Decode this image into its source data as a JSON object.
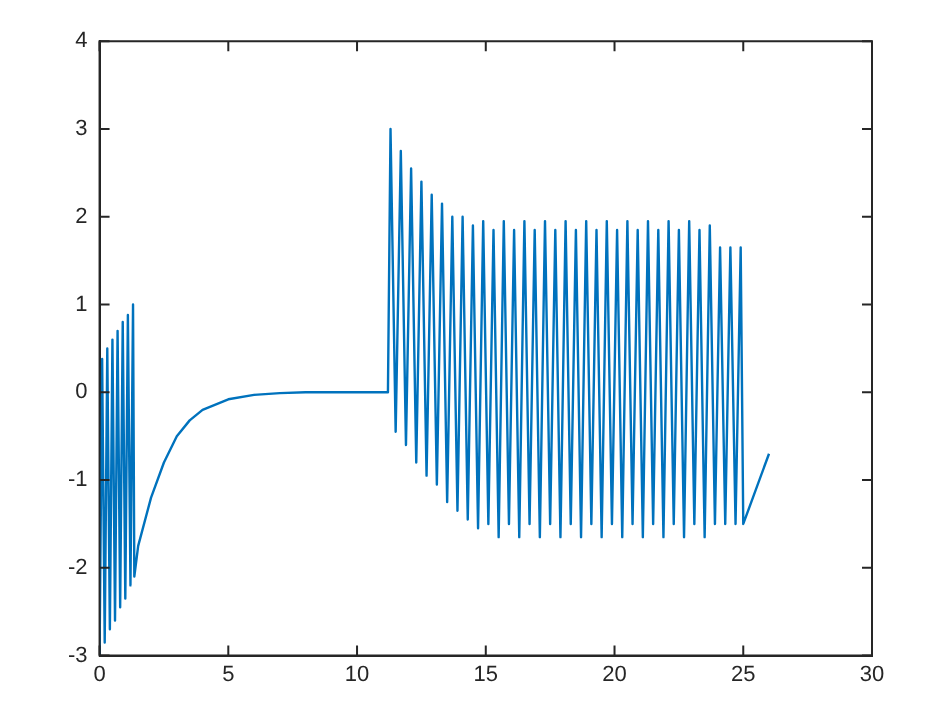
{
  "chart_data": {
    "type": "line",
    "marker": "none",
    "line_style": "solid",
    "grid": false,
    "legend": false,
    "xlim": [
      0,
      30
    ],
    "xticks": [
      0,
      5,
      10,
      15,
      20,
      25,
      30
    ],
    "ylim": [
      -3,
      4
    ],
    "yticks": [
      -3,
      -2,
      -1,
      0,
      1,
      2,
      3,
      4
    ],
    "series": [
      {
        "color": "#0072bd",
        "x": [
          0,
          0.1,
          0.2,
          0.3,
          0.4,
          0.5,
          0.6,
          0.7,
          0.8,
          0.9,
          1.0,
          1.1,
          1.2,
          1.3,
          1.35,
          1.5,
          2,
          2.5,
          3,
          3.5,
          4,
          5,
          6,
          7,
          8,
          11.2,
          11.3,
          11.5,
          11.7,
          11.9,
          12.1,
          12.3,
          12.5,
          12.7,
          12.9,
          13.1,
          13.3,
          13.5,
          13.7,
          13.9,
          14.1,
          14.3,
          14.5,
          14.7,
          14.9,
          15.1,
          15.3,
          15.5,
          15.7,
          15.9,
          16.1,
          16.3,
          16.5,
          16.7,
          16.9,
          17.1,
          17.3,
          17.5,
          17.7,
          17.9,
          18.1,
          18.3,
          18.5,
          18.7,
          18.9,
          19.1,
          19.3,
          19.5,
          19.7,
          19.9,
          20.1,
          20.3,
          20.5,
          20.7,
          20.9,
          21.1,
          21.3,
          21.5,
          21.7,
          21.9,
          22.1,
          22.3,
          22.5,
          22.7,
          22.9,
          23.1,
          23.3,
          23.5,
          23.7,
          23.9,
          24.1,
          24.3,
          24.5,
          24.7,
          24.9,
          25.0,
          26
        ],
        "values": [
          -3.0,
          0.38,
          -2.85,
          0.5,
          -2.7,
          0.6,
          -2.6,
          0.7,
          -2.45,
          0.8,
          -2.35,
          0.88,
          -2.2,
          1.0,
          -2.1,
          -1.75,
          -1.2,
          -0.8,
          -0.5,
          -0.32,
          -0.2,
          -0.08,
          -0.03,
          -0.01,
          0,
          0,
          3.0,
          -0.45,
          2.75,
          -0.6,
          2.55,
          -0.8,
          2.4,
          -0.95,
          2.25,
          -1.05,
          2.15,
          -1.25,
          2.0,
          -1.35,
          2.0,
          -1.45,
          1.9,
          -1.55,
          1.95,
          -1.5,
          1.85,
          -1.65,
          1.95,
          -1.5,
          1.85,
          -1.65,
          1.95,
          -1.5,
          1.85,
          -1.65,
          1.95,
          -1.5,
          1.85,
          -1.65,
          1.95,
          -1.5,
          1.85,
          -1.65,
          1.95,
          -1.5,
          1.85,
          -1.65,
          1.95,
          -1.5,
          1.85,
          -1.65,
          1.95,
          -1.5,
          1.85,
          -1.65,
          1.95,
          -1.5,
          1.85,
          -1.65,
          1.95,
          -1.5,
          1.85,
          -1.65,
          1.95,
          -1.5,
          1.85,
          -1.65,
          1.9,
          -1.5,
          1.65,
          -1.5,
          1.65,
          -1.5,
          1.65,
          -1.5,
          -0.7
        ]
      }
    ]
  }
}
